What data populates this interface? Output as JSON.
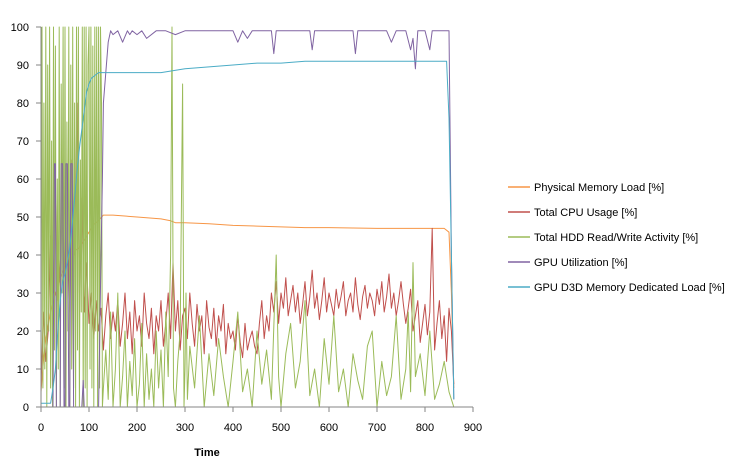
{
  "chart_data": {
    "type": "line",
    "title": "",
    "xlabel": "Time",
    "ylabel": "",
    "xlim": [
      0,
      900
    ],
    "ylim": [
      0,
      100
    ],
    "x_ticks": [
      "0",
      "100",
      "200",
      "300",
      "400",
      "500",
      "600",
      "700",
      "800",
      "900"
    ],
    "y_ticks": [
      "0",
      "10",
      "20",
      "30",
      "40",
      "50",
      "60",
      "70",
      "80",
      "90",
      "100"
    ],
    "grid": false,
    "legend_position": "right",
    "series": [
      {
        "name": "Physical Memory Load [%]",
        "color": "#F79646",
        "x": [
          0,
          5,
          10,
          20,
          30,
          40,
          50,
          60,
          70,
          80,
          90,
          100,
          110,
          120,
          130,
          150,
          200,
          250,
          270,
          280,
          300,
          350,
          400,
          450,
          500,
          550,
          600,
          650,
          700,
          750,
          800,
          840,
          850,
          855,
          860
        ],
        "y": [
          4,
          12,
          18,
          25,
          30,
          34,
          37,
          39,
          41,
          42,
          44,
          46,
          48,
          49,
          50.5,
          50.5,
          50,
          49.5,
          49,
          48.5,
          48.5,
          48.2,
          47.8,
          47.6,
          47.4,
          47.2,
          47.2,
          47.1,
          47,
          47,
          47,
          47,
          46,
          30,
          5
        ]
      },
      {
        "name": "Total CPU Usage [%]",
        "color": "#C0504D",
        "x": [
          0,
          5,
          10,
          15,
          20,
          25,
          30,
          35,
          40,
          45,
          50,
          55,
          60,
          65,
          70,
          75,
          80,
          85,
          90,
          95,
          100,
          105,
          110,
          115,
          120,
          125,
          130,
          135,
          140,
          145,
          150,
          155,
          160,
          165,
          170,
          175,
          180,
          185,
          190,
          195,
          200,
          205,
          210,
          215,
          220,
          225,
          230,
          235,
          240,
          245,
          250,
          255,
          260,
          265,
          270,
          275,
          280,
          285,
          290,
          295,
          300,
          305,
          310,
          315,
          320,
          325,
          330,
          335,
          340,
          345,
          350,
          355,
          360,
          365,
          370,
          375,
          380,
          385,
          390,
          395,
          400,
          405,
          410,
          415,
          420,
          425,
          430,
          435,
          440,
          445,
          450,
          455,
          460,
          465,
          470,
          475,
          480,
          485,
          490,
          495,
          500,
          505,
          510,
          515,
          520,
          525,
          530,
          535,
          540,
          545,
          550,
          555,
          560,
          565,
          570,
          575,
          580,
          585,
          590,
          595,
          600,
          605,
          610,
          615,
          620,
          625,
          630,
          635,
          640,
          645,
          650,
          655,
          660,
          665,
          670,
          675,
          680,
          685,
          690,
          695,
          700,
          705,
          710,
          715,
          720,
          725,
          730,
          735,
          740,
          745,
          750,
          755,
          760,
          765,
          770,
          775,
          780,
          785,
          790,
          795,
          800,
          805,
          810,
          815,
          820,
          825,
          830,
          835,
          840,
          845,
          850,
          855,
          860
        ],
        "y": [
          5,
          25,
          12,
          20,
          45,
          30,
          55,
          28,
          40,
          60,
          35,
          50,
          25,
          65,
          40,
          80,
          30,
          55,
          25,
          38,
          22,
          30,
          18,
          28,
          20,
          26,
          15,
          24,
          30,
          18,
          25,
          20,
          28,
          16,
          22,
          30,
          18,
          25,
          14,
          28,
          20,
          24,
          16,
          30,
          22,
          18,
          26,
          14,
          24,
          20,
          28,
          16,
          22,
          30,
          18,
          38,
          20,
          28,
          15,
          24,
          26,
          18,
          30,
          22,
          16,
          27,
          20,
          24,
          14,
          28,
          21,
          18,
          26,
          16,
          24,
          20,
          27,
          14,
          22,
          18,
          20,
          15,
          24,
          17,
          13,
          22,
          15,
          18,
          20,
          16,
          14,
          22,
          28,
          18,
          24,
          20,
          30,
          25,
          33,
          22,
          30,
          26,
          34,
          24,
          28,
          32,
          25,
          30,
          22,
          27,
          33,
          24,
          29,
          36,
          26,
          30,
          23,
          28,
          34,
          25,
          30,
          27,
          24,
          31,
          26,
          29,
          33,
          24,
          28,
          30,
          25,
          34,
          27,
          23,
          29,
          32,
          26,
          30,
          28,
          24,
          31,
          27,
          33,
          25,
          29,
          35,
          26,
          30,
          24,
          28,
          33,
          27,
          22,
          26,
          31,
          20,
          24,
          28,
          17,
          22,
          27,
          19,
          25,
          47,
          15,
          22,
          28,
          18,
          24,
          12,
          26,
          20,
          6
        ]
      },
      {
        "name": "Total HDD Read/Write Activity [%]",
        "color": "#9BBB59",
        "x": [
          0,
          2,
          4,
          6,
          8,
          10,
          12,
          14,
          16,
          18,
          20,
          22,
          24,
          26,
          28,
          30,
          32,
          34,
          36,
          38,
          40,
          42,
          44,
          46,
          48,
          50,
          52,
          54,
          56,
          58,
          60,
          62,
          64,
          66,
          68,
          70,
          72,
          74,
          76,
          78,
          80,
          82,
          84,
          86,
          88,
          90,
          92,
          94,
          96,
          98,
          100,
          102,
          104,
          106,
          108,
          110,
          112,
          114,
          116,
          118,
          120,
          122,
          124,
          126,
          128,
          130,
          135,
          140,
          145,
          150,
          155,
          160,
          165,
          170,
          175,
          180,
          185,
          190,
          195,
          200,
          205,
          210,
          215,
          220,
          225,
          230,
          235,
          240,
          245,
          250,
          255,
          260,
          265,
          270,
          273,
          276,
          280,
          285,
          290,
          295,
          298,
          300,
          302,
          305,
          310,
          320,
          330,
          340,
          350,
          360,
          370,
          380,
          390,
          400,
          410,
          420,
          430,
          440,
          450,
          460,
          470,
          480,
          490,
          495,
          500,
          510,
          520,
          530,
          540,
          550,
          560,
          570,
          580,
          590,
          600,
          610,
          620,
          630,
          640,
          650,
          660,
          670,
          680,
          690,
          700,
          710,
          720,
          730,
          740,
          750,
          760,
          765,
          770,
          775,
          780,
          790,
          800,
          810,
          820,
          830,
          840,
          850,
          860
        ],
        "y": [
          0,
          100,
          5,
          80,
          10,
          100,
          0,
          90,
          20,
          100,
          5,
          70,
          0,
          100,
          15,
          95,
          0,
          60,
          10,
          100,
          0,
          85,
          30,
          100,
          5,
          100,
          0,
          75,
          20,
          100,
          0,
          90,
          10,
          100,
          5,
          80,
          0,
          100,
          15,
          100,
          0,
          65,
          25,
          100,
          0,
          100,
          5,
          100,
          0,
          90,
          100,
          10,
          100,
          5,
          95,
          0,
          100,
          20,
          100,
          0,
          100,
          5,
          100,
          80,
          0,
          5,
          15,
          2,
          25,
          0,
          10,
          30,
          0,
          8,
          20,
          0,
          12,
          3,
          18,
          0,
          6,
          22,
          0,
          14,
          2,
          10,
          0,
          20,
          5,
          15,
          0,
          25,
          8,
          40,
          100,
          5,
          0,
          12,
          20,
          85,
          0,
          10,
          30,
          2,
          16,
          5,
          24,
          0,
          14,
          3,
          18,
          8,
          0,
          12,
          25,
          4,
          10,
          0,
          20,
          6,
          15,
          2,
          40,
          8,
          0,
          14,
          22,
          5,
          12,
          28,
          3,
          10,
          0,
          18,
          6,
          24,
          4,
          10,
          0,
          14,
          7,
          2,
          16,
          20,
          0,
          12,
          3,
          8,
          24,
          2,
          10,
          25,
          4,
          38,
          8,
          14,
          3,
          20,
          2,
          6,
          12,
          4,
          0
        ]
      },
      {
        "name": "GPU Utilization  [%]",
        "color": "#8064A2",
        "x": [
          0,
          10,
          20,
          25,
          28,
          30,
          32,
          35,
          40,
          42,
          45,
          48,
          50,
          52,
          55,
          58,
          60,
          62,
          65,
          68,
          70,
          75,
          80,
          85,
          88,
          90,
          92,
          95,
          100,
          105,
          110,
          115,
          120,
          125,
          128,
          130,
          135,
          140,
          145,
          150,
          160,
          170,
          180,
          185,
          190,
          200,
          210,
          220,
          240,
          260,
          280,
          300,
          350,
          400,
          410,
          420,
          430,
          440,
          450,
          460,
          470,
          480,
          485,
          490,
          500,
          550,
          560,
          565,
          570,
          580,
          600,
          620,
          640,
          650,
          655,
          660,
          670,
          700,
          720,
          730,
          740,
          750,
          760,
          770,
          775,
          780,
          785,
          790,
          800,
          810,
          815,
          820,
          830,
          840,
          845,
          850,
          855,
          860
        ],
        "y": [
          0,
          0,
          0,
          0,
          64,
          64,
          0,
          0,
          0,
          64,
          64,
          0,
          0,
          64,
          64,
          0,
          0,
          64,
          64,
          0,
          0,
          0,
          0,
          0,
          7,
          0,
          0,
          0,
          0,
          0,
          0,
          0,
          0,
          40,
          60,
          80,
          88,
          96,
          99,
          98,
          99,
          96,
          99,
          98,
          99,
          98,
          99,
          97,
          99,
          99,
          98,
          99,
          99,
          99,
          96,
          99,
          97,
          99,
          99,
          99,
          99,
          99,
          93,
          99,
          99,
          99,
          99,
          94,
          99,
          99,
          99,
          99,
          99,
          99,
          93,
          99,
          99,
          99,
          99,
          96,
          99,
          99,
          99,
          94,
          97,
          89,
          99,
          99,
          99,
          94,
          99,
          99,
          99,
          99,
          99,
          99,
          40,
          2
        ]
      },
      {
        "name": "GPU D3D Memory Dedicated Load [%]",
        "color": "#4BACC6",
        "x": [
          0,
          10,
          20,
          25,
          30,
          35,
          40,
          45,
          50,
          55,
          60,
          65,
          70,
          75,
          80,
          85,
          90,
          95,
          100,
          105,
          110,
          115,
          120,
          125,
          130,
          140,
          150,
          160,
          170,
          200,
          250,
          300,
          350,
          400,
          450,
          500,
          550,
          600,
          650,
          700,
          750,
          800,
          840,
          845,
          850,
          855,
          860
        ],
        "y": [
          1,
          1,
          1,
          5,
          10,
          20,
          28,
          33,
          35,
          38,
          42,
          48,
          55,
          62,
          68,
          73,
          78,
          83,
          85,
          86.5,
          87,
          87.5,
          88,
          88,
          88,
          88,
          88,
          88,
          88,
          88,
          88,
          89,
          89.5,
          90,
          90.5,
          90.5,
          91,
          91,
          91,
          91,
          91,
          91,
          91,
          91,
          76,
          40,
          2
        ]
      }
    ]
  }
}
